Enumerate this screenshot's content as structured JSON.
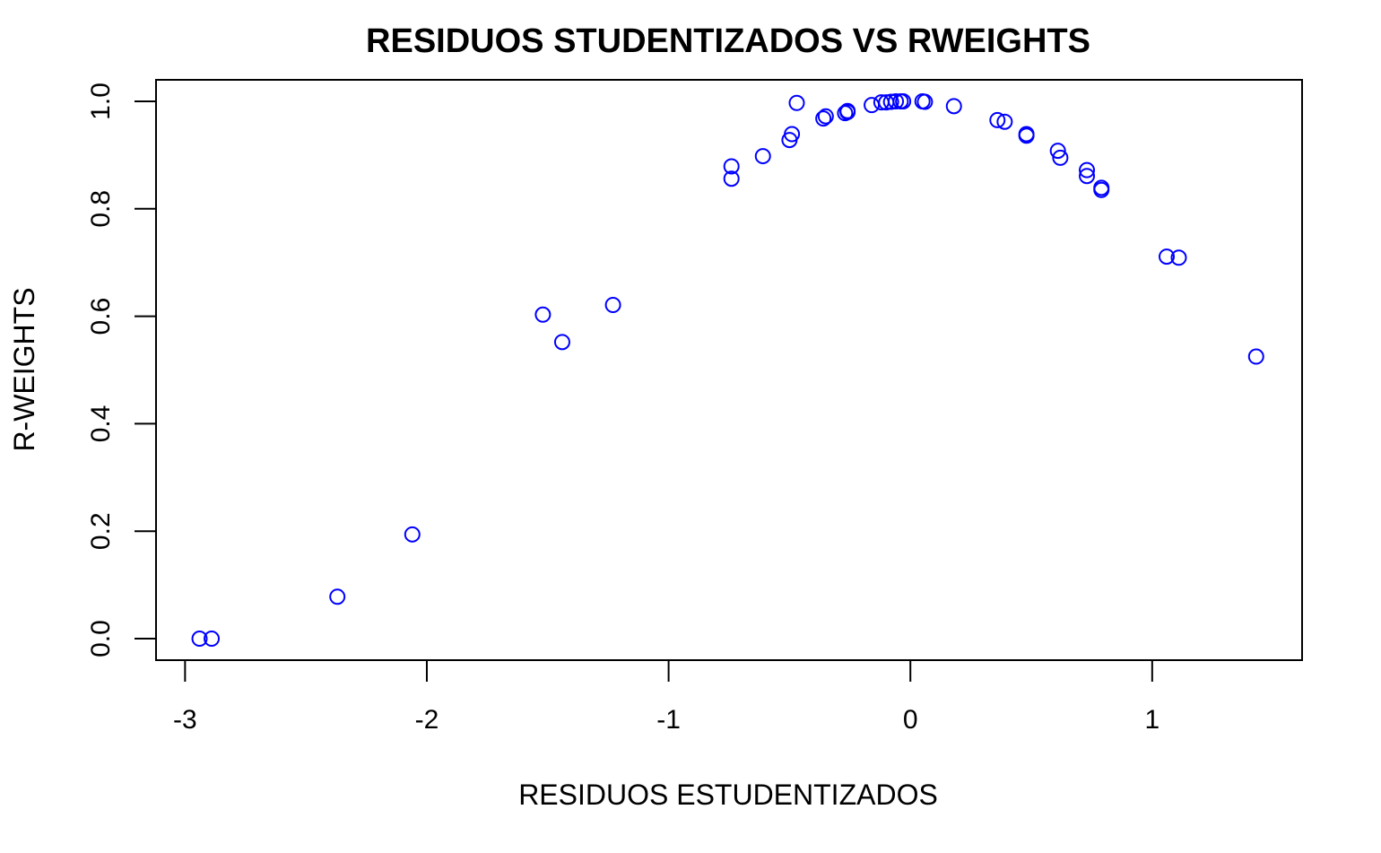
{
  "chart_data": {
    "type": "scatter",
    "title": "RESIDUOS STUDENTIZADOS VS RWEIGHTS",
    "xlabel": "RESIDUOS ESTUDENTIZADOS",
    "ylabel": "R-WEIGHTS",
    "xlim": [
      -3.12,
      1.62
    ],
    "ylim": [
      -0.04,
      1.04
    ],
    "xticks": [
      -3,
      -2,
      -1,
      0,
      1
    ],
    "xtick_labels": [
      "-3",
      "-2",
      "-1",
      "0",
      "1"
    ],
    "yticks": [
      0.0,
      0.2,
      0.4,
      0.6,
      0.8,
      1.0
    ],
    "ytick_labels": [
      "0.0",
      "0.2",
      "0.4",
      "0.6",
      "0.8",
      "1.0"
    ],
    "grid": false,
    "marker": "open-circle",
    "color": "#0000ff",
    "series": [
      {
        "points": [
          {
            "x": -2.94,
            "y": 0.0
          },
          {
            "x": -2.89,
            "y": 0.0
          },
          {
            "x": -2.37,
            "y": 0.078
          },
          {
            "x": -2.06,
            "y": 0.194
          },
          {
            "x": -1.52,
            "y": 0.603
          },
          {
            "x": -1.44,
            "y": 0.552
          },
          {
            "x": -1.23,
            "y": 0.621
          },
          {
            "x": -0.74,
            "y": 0.879
          },
          {
            "x": -0.74,
            "y": 0.856
          },
          {
            "x": -0.61,
            "y": 0.898
          },
          {
            "x": -0.5,
            "y": 0.928
          },
          {
            "x": -0.49,
            "y": 0.939
          },
          {
            "x": -0.47,
            "y": 0.997
          },
          {
            "x": -0.36,
            "y": 0.968
          },
          {
            "x": -0.35,
            "y": 0.972
          },
          {
            "x": -0.27,
            "y": 0.978
          },
          {
            "x": -0.26,
            "y": 0.982
          },
          {
            "x": -0.26,
            "y": 0.98
          },
          {
            "x": -0.16,
            "y": 0.993
          },
          {
            "x": -0.12,
            "y": 0.998
          },
          {
            "x": -0.1,
            "y": 0.998
          },
          {
            "x": -0.08,
            "y": 0.999
          },
          {
            "x": -0.06,
            "y": 1.0
          },
          {
            "x": -0.04,
            "y": 1.0
          },
          {
            "x": -0.03,
            "y": 1.0
          },
          {
            "x": 0.05,
            "y": 1.0
          },
          {
            "x": 0.06,
            "y": 0.999
          },
          {
            "x": 0.18,
            "y": 0.991
          },
          {
            "x": 0.36,
            "y": 0.965
          },
          {
            "x": 0.39,
            "y": 0.962
          },
          {
            "x": 0.48,
            "y": 0.939
          },
          {
            "x": 0.48,
            "y": 0.936
          },
          {
            "x": 0.61,
            "y": 0.908
          },
          {
            "x": 0.62,
            "y": 0.895
          },
          {
            "x": 0.73,
            "y": 0.872
          },
          {
            "x": 0.73,
            "y": 0.861
          },
          {
            "x": 0.79,
            "y": 0.839
          },
          {
            "x": 0.79,
            "y": 0.835
          },
          {
            "x": 1.06,
            "y": 0.711
          },
          {
            "x": 1.11,
            "y": 0.709
          },
          {
            "x": 1.43,
            "y": 0.525
          }
        ]
      }
    ]
  }
}
